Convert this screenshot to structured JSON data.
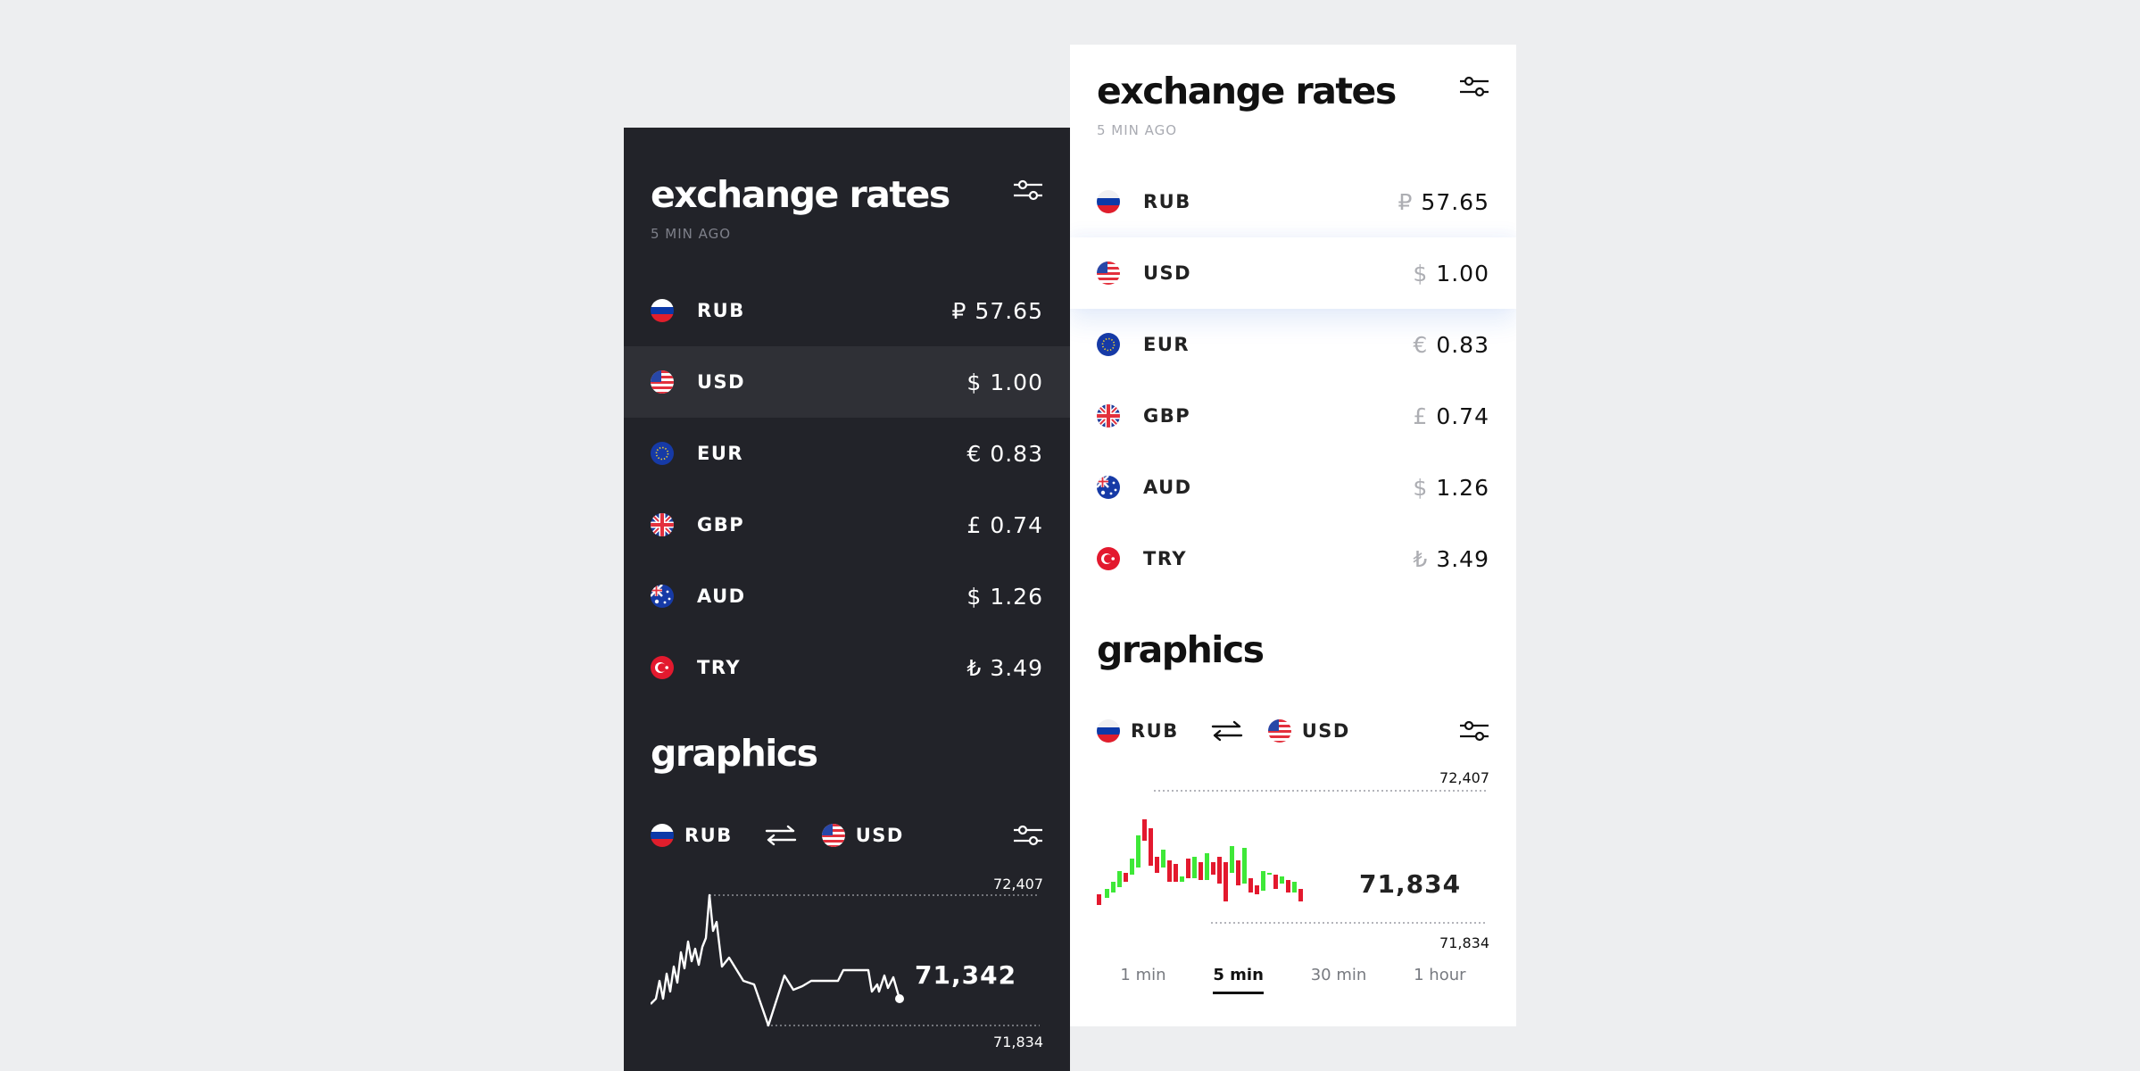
{
  "dark": {
    "title": "exchange rates",
    "updated": "5 MIN AGO",
    "rates": [
      {
        "flag": "ru-flag-icon",
        "code": "RUB",
        "symbol": "₽",
        "amount": "57.65"
      },
      {
        "flag": "us-flag-icon",
        "code": "USD",
        "symbol": "$",
        "amount": "1.00",
        "selected": true
      },
      {
        "flag": "eu-flag-icon",
        "code": "EUR",
        "symbol": "€",
        "amount": "0.83"
      },
      {
        "flag": "gb-flag-icon",
        "code": "GBP",
        "symbol": "£",
        "amount": "0.74"
      },
      {
        "flag": "au-flag-icon",
        "code": "AUD",
        "symbol": "$",
        "amount": "1.26"
      },
      {
        "flag": "tr-flag-icon",
        "code": "TRY",
        "symbol": "₺",
        "amount": "3.49"
      }
    ],
    "graphics": {
      "title": "graphics",
      "from": "RUB",
      "to": "USD",
      "high": "72,407",
      "low": "71,834",
      "current": "71,342"
    }
  },
  "light": {
    "title": "exchange rates",
    "updated": "5 MIN AGO",
    "rates": [
      {
        "flag": "ru-flag-icon",
        "code": "RUB",
        "symbol": "₽",
        "amount": "57.65"
      },
      {
        "flag": "us-flag-icon",
        "code": "USD",
        "symbol": "$",
        "amount": "1.00",
        "selected": true
      },
      {
        "flag": "eu-flag-icon",
        "code": "EUR",
        "symbol": "€",
        "amount": "0.83"
      },
      {
        "flag": "gb-flag-icon",
        "code": "GBP",
        "symbol": "£",
        "amount": "0.74"
      },
      {
        "flag": "au-flag-icon",
        "code": "AUD",
        "symbol": "$",
        "amount": "1.26"
      },
      {
        "flag": "tr-flag-icon",
        "code": "TRY",
        "symbol": "₺",
        "amount": "3.49"
      }
    ],
    "graphics": {
      "title": "graphics",
      "from": "RUB",
      "to": "USD",
      "high": "72,407",
      "low": "71,834",
      "current": "71,834"
    },
    "timeframes": [
      {
        "label": "1 min"
      },
      {
        "label": "5 min",
        "active": true
      },
      {
        "label": "30 min"
      },
      {
        "label": "1 hour"
      }
    ]
  },
  "colors": {
    "dark_bg": "#222329",
    "dark_selected_row": "#2f3036",
    "light_bg": "#ffffff",
    "page_bg": "#edeef0",
    "candle_up": "#3ee838",
    "candle_down": "#e3192e"
  }
}
